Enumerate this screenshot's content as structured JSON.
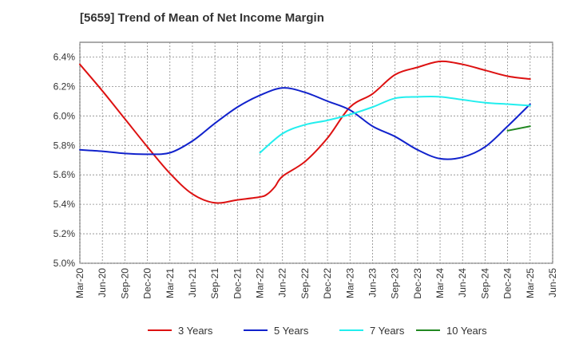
{
  "chart_data": {
    "type": "line",
    "title": "[5659]  Trend of Mean of Net Income Margin",
    "xlabel": "",
    "ylabel": "",
    "x_ticks": [
      "Mar-20",
      "Jun-20",
      "Sep-20",
      "Dec-20",
      "Mar-21",
      "Jun-21",
      "Sep-21",
      "Dec-21",
      "Mar-22",
      "Jun-22",
      "Sep-22",
      "Dec-22",
      "Mar-23",
      "Jun-23",
      "Sep-23",
      "Dec-23",
      "Mar-24",
      "Jun-24",
      "Sep-24",
      "Dec-24",
      "Mar-25",
      "Jun-25"
    ],
    "y_ticks": [
      "5.0%",
      "5.2%",
      "5.4%",
      "5.6%",
      "5.8%",
      "6.0%",
      "6.2%",
      "6.4%"
    ],
    "ylim": [
      5.0,
      6.5
    ],
    "grid": true,
    "legend_position": "bottom",
    "series": [
      {
        "name": "3 Years",
        "color": "#dd1111",
        "x": [
          "Mar-20",
          "Jun-20",
          "Sep-20",
          "Dec-20",
          "Mar-21",
          "Jun-21",
          "Sep-21",
          "Dec-21",
          "Mar-22",
          "Apr-22",
          "May-22",
          "Jun-22",
          "Sep-22",
          "Dec-22",
          "Mar-23",
          "Jun-23",
          "Sep-23",
          "Dec-23",
          "Mar-24",
          "Jun-24",
          "Sep-24",
          "Dec-24",
          "Mar-25"
        ],
        "values": [
          6.35,
          6.17,
          5.98,
          5.79,
          5.61,
          5.47,
          5.41,
          5.43,
          5.45,
          5.47,
          5.52,
          5.59,
          5.69,
          5.85,
          6.06,
          6.15,
          6.28,
          6.33,
          6.37,
          6.35,
          6.31,
          6.27,
          6.25
        ]
      },
      {
        "name": "5 Years",
        "color": "#1122cc",
        "x": [
          "Mar-20",
          "Jun-20",
          "Sep-20",
          "Dec-20",
          "Mar-21",
          "Jun-21",
          "Sep-21",
          "Dec-21",
          "Mar-22",
          "Jun-22",
          "Sep-22",
          "Dec-22",
          "Mar-23",
          "Jun-23",
          "Sep-23",
          "Dec-23",
          "Mar-24",
          "Jun-24",
          "Sep-24",
          "Dec-24",
          "Mar-25"
        ],
        "values": [
          5.77,
          5.76,
          5.745,
          5.74,
          5.75,
          5.83,
          5.95,
          6.06,
          6.14,
          6.19,
          6.16,
          6.1,
          6.04,
          5.93,
          5.86,
          5.77,
          5.71,
          5.72,
          5.79,
          5.93,
          6.08
        ]
      },
      {
        "name": "7 Years",
        "color": "#22eeee",
        "x": [
          "Mar-22",
          "Jun-22",
          "Sep-22",
          "Dec-22",
          "Mar-23",
          "Jun-23",
          "Sep-23",
          "Dec-23",
          "Mar-24",
          "Jun-24",
          "Sep-24",
          "Dec-24",
          "Mar-25"
        ],
        "values": [
          5.75,
          5.88,
          5.94,
          5.97,
          6.01,
          6.06,
          6.12,
          6.13,
          6.13,
          6.11,
          6.09,
          6.08,
          6.07
        ]
      },
      {
        "name": "10 Years",
        "color": "#228822",
        "x": [
          "Dec-24",
          "Mar-25"
        ],
        "values": [
          5.9,
          5.93
        ]
      }
    ]
  }
}
